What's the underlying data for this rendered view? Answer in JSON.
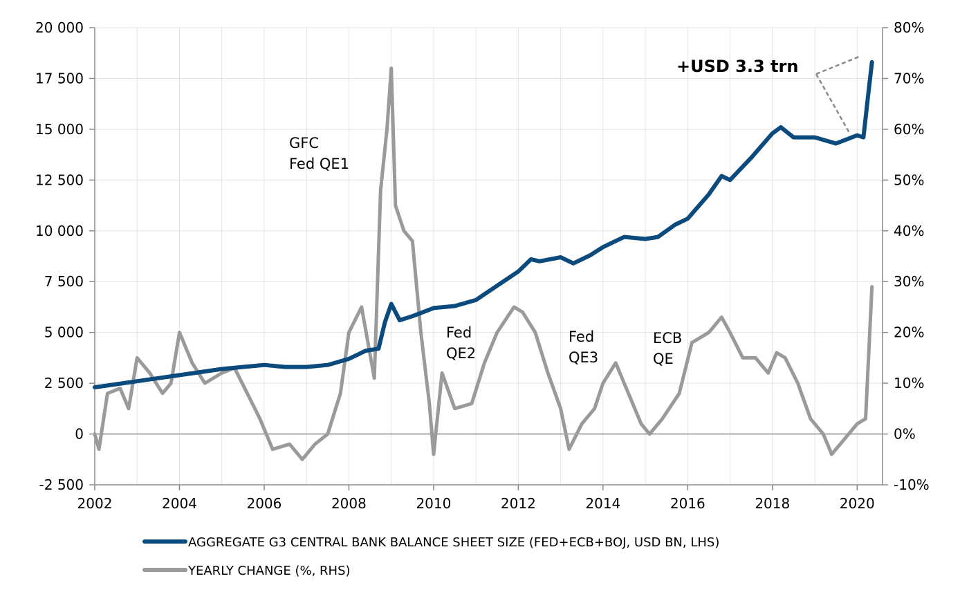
{
  "chart_data": {
    "type": "line",
    "x_range": [
      2002.0,
      2020.6
    ],
    "x_ticks": [
      "2002",
      "2004",
      "2006",
      "2008",
      "2010",
      "2012",
      "2014",
      "2016",
      "2018",
      "2020"
    ],
    "y_left": {
      "range": [
        -2500,
        20000
      ],
      "ticks": [
        -2500,
        0,
        2500,
        5000,
        7500,
        10000,
        12500,
        15000,
        17500,
        20000
      ],
      "tick_labels": [
        "-2 500",
        "0",
        "2 500",
        "5 000",
        "7 500",
        "10 000",
        "12 500",
        "15 000",
        "17 500",
        "20 000"
      ]
    },
    "y_right": {
      "range": [
        -10,
        80
      ],
      "ticks": [
        -10,
        0,
        10,
        20,
        30,
        40,
        50,
        60,
        70,
        80
      ],
      "tick_labels": [
        "-10%",
        "0%",
        "10%",
        "20%",
        "30%",
        "40%",
        "50%",
        "60%",
        "70%",
        "80%"
      ]
    },
    "grid": true,
    "legend_position": "bottom",
    "series": [
      {
        "name": "AGGREGATE G3 CENTRAL BANK BALANCE SHEET SIZE (FED+ECB+BOJ, USD BN, LHS)",
        "axis": "left",
        "color": "#0b4a7d",
        "x": [
          2002.0,
          2002.5,
          2003.0,
          2003.5,
          2004.0,
          2004.5,
          2005.0,
          2005.5,
          2006.0,
          2006.5,
          2007.0,
          2007.5,
          2008.0,
          2008.4,
          2008.7,
          2008.85,
          2009.0,
          2009.2,
          2009.5,
          2010.0,
          2010.5,
          2011.0,
          2011.5,
          2012.0,
          2012.3,
          2012.5,
          2013.0,
          2013.3,
          2013.7,
          2014.0,
          2014.5,
          2015.0,
          2015.3,
          2015.7,
          2016.0,
          2016.5,
          2016.8,
          2017.0,
          2017.5,
          2018.0,
          2018.2,
          2018.5,
          2019.0,
          2019.5,
          2020.0,
          2020.15,
          2020.25,
          2020.35
        ],
        "values": [
          2300,
          2450,
          2600,
          2750,
          2900,
          3050,
          3200,
          3300,
          3400,
          3300,
          3300,
          3400,
          3700,
          4100,
          4200,
          5500,
          6400,
          5600,
          5800,
          6200,
          6300,
          6600,
          7300,
          8000,
          8600,
          8500,
          8700,
          8400,
          8800,
          9200,
          9700,
          9600,
          9700,
          10300,
          10600,
          11800,
          12700,
          12500,
          13600,
          14800,
          15100,
          14600,
          14600,
          14300,
          14700,
          14600,
          16500,
          18300
        ]
      },
      {
        "name": "YEARLY CHANGE (%, RHS)",
        "axis": "right",
        "color": "#9a9a9a",
        "x": [
          2002.0,
          2002.1,
          2002.3,
          2002.6,
          2002.8,
          2003.0,
          2003.3,
          2003.6,
          2003.8,
          2004.0,
          2004.3,
          2004.6,
          2005.0,
          2005.3,
          2005.6,
          2005.9,
          2006.2,
          2006.6,
          2006.9,
          2007.2,
          2007.5,
          2007.8,
          2008.0,
          2008.3,
          2008.6,
          2008.75,
          2008.9,
          2009.0,
          2009.1,
          2009.3,
          2009.5,
          2009.7,
          2009.9,
          2010.0,
          2010.2,
          2010.5,
          2010.9,
          2011.2,
          2011.5,
          2011.9,
          2012.1,
          2012.4,
          2012.7,
          2013.0,
          2013.2,
          2013.5,
          2013.8,
          2014.0,
          2014.3,
          2014.6,
          2014.9,
          2015.1,
          2015.4,
          2015.8,
          2016.1,
          2016.5,
          2016.8,
          2017.0,
          2017.3,
          2017.6,
          2017.9,
          2018.1,
          2018.3,
          2018.6,
          2018.9,
          2019.2,
          2019.4,
          2019.7,
          2020.0,
          2020.2,
          2020.35
        ],
        "values": [
          0,
          -3,
          8,
          9,
          5,
          15,
          12,
          8,
          10,
          20,
          14,
          10,
          12,
          13,
          8,
          3,
          -3,
          -2,
          -5,
          -2,
          0,
          8,
          20,
          25,
          11,
          48,
          60,
          72,
          45,
          40,
          38,
          20,
          6,
          -4,
          12,
          5,
          6,
          14,
          20,
          25,
          24,
          20,
          12,
          5,
          -3,
          2,
          5,
          10,
          14,
          8,
          2,
          0,
          3,
          8,
          18,
          20,
          23,
          20,
          15,
          15,
          12,
          16,
          15,
          10,
          3,
          0,
          -4,
          -1,
          2,
          3,
          29
        ]
      }
    ],
    "annotations": [
      {
        "lines": [
          "GFC",
          "Fed QE1"
        ]
      },
      {
        "lines": [
          "Fed",
          "QE2"
        ]
      },
      {
        "lines": [
          "Fed",
          "QE3"
        ]
      },
      {
        "lines": [
          "ECB",
          "QE"
        ]
      },
      {
        "lines": [
          "+USD 3.3 trn"
        ],
        "bold": true
      }
    ]
  }
}
